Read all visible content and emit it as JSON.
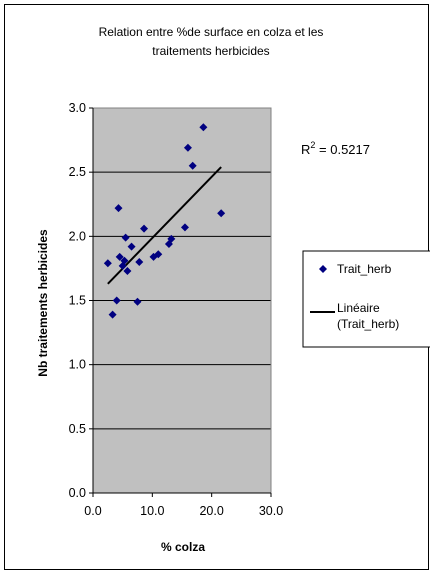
{
  "chart_data": {
    "type": "scatter",
    "title_line1": "Relation entre %de surface en colza et les",
    "title_line2": "traitements herbicides",
    "xlabel": "% colza",
    "ylabel": "Nb traitements herbicides",
    "xlim": [
      0,
      30
    ],
    "ylim": [
      0,
      3
    ],
    "xticks": [
      "0.0",
      "10.0",
      "20.0",
      "30.0"
    ],
    "yticks": [
      "0.0",
      "0.5",
      "1.0",
      "1.5",
      "2.0",
      "2.5",
      "3.0"
    ],
    "grid": true,
    "plot_background": "#c0c0c0",
    "r2_label": "R",
    "r2_sup": "2",
    "r2_value": " = 0.5217",
    "series": [
      {
        "name": "Trait_herb",
        "color": "#000080",
        "marker": "diamond",
        "x": [
          2.5,
          3.3,
          4.0,
          4.3,
          4.5,
          5.0,
          5.3,
          5.5,
          5.8,
          6.5,
          7.5,
          7.8,
          8.6,
          10.2,
          11.0,
          12.8,
          13.2,
          15.5,
          16.0,
          16.8,
          18.6,
          21.6
        ],
        "y": [
          1.79,
          1.39,
          1.5,
          2.22,
          1.84,
          1.77,
          1.81,
          1.99,
          1.73,
          1.92,
          1.49,
          1.8,
          2.06,
          1.84,
          1.86,
          1.94,
          1.98,
          2.07,
          2.69,
          2.55,
          2.85,
          2.18
        ]
      },
      {
        "name_line1": "Linéaire",
        "name_line2": "(Trait_herb)",
        "type": "trendline",
        "color": "#000000",
        "x": [
          2.5,
          21.6
        ],
        "y": [
          1.63,
          2.54
        ]
      }
    ],
    "legend_placement": "right"
  }
}
